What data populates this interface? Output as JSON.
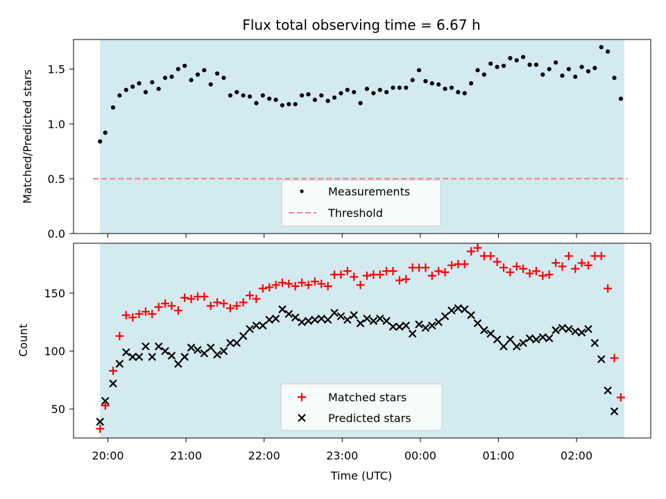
{
  "chart_data": [
    {
      "type": "scatter",
      "title": "Flux total observing time = 6.67 h",
      "xlabel": "",
      "ylabel": "Matched/Predicted stars",
      "ylim": [
        0,
        1.77
      ],
      "yticks": [
        "0.0",
        "0.5",
        "1.0",
        "1.5"
      ],
      "grid": false,
      "legend_position": "lower-center",
      "observing_window_color": "#d3eaf0",
      "series": [
        {
          "name": "Measurements",
          "marker": "dot",
          "color": "#000000",
          "x": [
            "19:54",
            "19:58",
            "20:04",
            "20:09",
            "20:14",
            "20:19",
            "20:24",
            "20:29",
            "20:34",
            "20:39",
            "20:44",
            "20:49",
            "20:54",
            "20:59",
            "21:04",
            "21:09",
            "21:14",
            "21:19",
            "21:24",
            "21:29",
            "21:34",
            "21:39",
            "21:44",
            "21:49",
            "21:54",
            "21:59",
            "22:04",
            "22:09",
            "22:14",
            "22:19",
            "22:24",
            "22:29",
            "22:34",
            "22:39",
            "22:44",
            "22:49",
            "22:54",
            "22:59",
            "23:04",
            "23:09",
            "23:14",
            "23:19",
            "23:24",
            "23:29",
            "23:34",
            "23:39",
            "23:44",
            "23:49",
            "23:54",
            "23:59",
            "00:04",
            "00:09",
            "00:14",
            "00:19",
            "00:24",
            "00:29",
            "00:34",
            "00:39",
            "00:44",
            "00:49",
            "00:54",
            "00:59",
            "01:04",
            "01:09",
            "01:14",
            "01:19",
            "01:24",
            "01:29",
            "01:34",
            "01:39",
            "01:44",
            "01:49",
            "01:54",
            "01:59",
            "02:04",
            "02:09",
            "02:14",
            "02:19",
            "02:24",
            "02:29",
            "02:34"
          ],
          "y": [
            0.84,
            0.92,
            1.15,
            1.26,
            1.31,
            1.34,
            1.37,
            1.29,
            1.38,
            1.32,
            1.42,
            1.43,
            1.5,
            1.53,
            1.4,
            1.45,
            1.49,
            1.36,
            1.46,
            1.42,
            1.26,
            1.29,
            1.26,
            1.25,
            1.19,
            1.26,
            1.23,
            1.22,
            1.17,
            1.18,
            1.18,
            1.26,
            1.27,
            1.22,
            1.26,
            1.21,
            1.24,
            1.28,
            1.31,
            1.29,
            1.19,
            1.32,
            1.28,
            1.31,
            1.29,
            1.33,
            1.33,
            1.33,
            1.4,
            1.49,
            1.39,
            1.37,
            1.36,
            1.32,
            1.33,
            1.29,
            1.28,
            1.37,
            1.49,
            1.45,
            1.55,
            1.52,
            1.53,
            1.6,
            1.58,
            1.61,
            1.54,
            1.54,
            1.45,
            1.5,
            1.56,
            1.44,
            1.5,
            1.43,
            1.52,
            1.48,
            1.51,
            1.7,
            1.66,
            1.42,
            1.23
          ]
        },
        {
          "name": "Threshold",
          "marker": "dashed-line",
          "color": "#f08080",
          "x": [
            "19:54",
            "02:34"
          ],
          "y": [
            0.5,
            0.5
          ]
        }
      ]
    },
    {
      "type": "scatter",
      "title": "",
      "xlabel": "Time (UTC)",
      "ylabel": "Count",
      "ylim": [
        25,
        193
      ],
      "yticks": [
        "50",
        "100",
        "150"
      ],
      "xticks": [
        "20:00",
        "21:00",
        "22:00",
        "23:00",
        "00:00",
        "01:00",
        "02:00"
      ],
      "grid": false,
      "legend_position": "lower-center",
      "observing_window_color": "#d3eaf0",
      "series": [
        {
          "name": "Matched stars",
          "marker": "plus",
          "color": "#ff0000",
          "x": [
            "19:54",
            "19:58",
            "20:04",
            "20:09",
            "20:14",
            "20:19",
            "20:24",
            "20:29",
            "20:34",
            "20:39",
            "20:44",
            "20:49",
            "20:54",
            "20:59",
            "21:04",
            "21:09",
            "21:14",
            "21:19",
            "21:24",
            "21:29",
            "21:34",
            "21:39",
            "21:44",
            "21:49",
            "21:54",
            "21:59",
            "22:04",
            "22:09",
            "22:14",
            "22:19",
            "22:24",
            "22:29",
            "22:34",
            "22:39",
            "22:44",
            "22:49",
            "22:54",
            "22:59",
            "23:04",
            "23:09",
            "23:14",
            "23:19",
            "23:24",
            "23:29",
            "23:34",
            "23:39",
            "23:44",
            "23:49",
            "23:54",
            "23:59",
            "00:04",
            "00:09",
            "00:14",
            "00:19",
            "00:24",
            "00:29",
            "00:34",
            "00:39",
            "00:44",
            "00:49",
            "00:54",
            "00:59",
            "01:04",
            "01:09",
            "01:14",
            "01:19",
            "01:24",
            "01:29",
            "01:34",
            "01:39",
            "01:44",
            "01:49",
            "01:54",
            "01:59",
            "02:04",
            "02:09",
            "02:14",
            "02:19",
            "02:24",
            "02:29",
            "02:34"
          ],
          "y": [
            33,
            53,
            83,
            113,
            131,
            129,
            132,
            134,
            132,
            138,
            141,
            139,
            135,
            146,
            145,
            147,
            147,
            139,
            142,
            141,
            137,
            139,
            142,
            148,
            145,
            154,
            155,
            157,
            159,
            158,
            156,
            159,
            157,
            160,
            158,
            156,
            166,
            166,
            169,
            164,
            157,
            165,
            166,
            166,
            169,
            169,
            161,
            162,
            172,
            172,
            172,
            165,
            169,
            168,
            174,
            175,
            175,
            186,
            189,
            182,
            182,
            177,
            172,
            168,
            173,
            171,
            167,
            169,
            165,
            166,
            176,
            173,
            182,
            171,
            176,
            174,
            182,
            182,
            154,
            94,
            60
          ]
        },
        {
          "name": "Predicted stars",
          "marker": "x",
          "color": "#000000",
          "x": [
            "19:54",
            "19:58",
            "20:04",
            "20:09",
            "20:14",
            "20:19",
            "20:24",
            "20:29",
            "20:34",
            "20:39",
            "20:44",
            "20:49",
            "20:54",
            "20:59",
            "21:04",
            "21:09",
            "21:14",
            "21:19",
            "21:24",
            "21:29",
            "21:34",
            "21:39",
            "21:44",
            "21:49",
            "21:54",
            "21:59",
            "22:04",
            "22:09",
            "22:14",
            "22:19",
            "22:24",
            "22:29",
            "22:34",
            "22:39",
            "22:44",
            "22:49",
            "22:54",
            "22:59",
            "23:04",
            "23:09",
            "23:14",
            "23:19",
            "23:24",
            "23:29",
            "23:34",
            "23:39",
            "23:44",
            "23:49",
            "23:54",
            "23:59",
            "00:04",
            "00:09",
            "00:14",
            "00:19",
            "00:24",
            "00:29",
            "00:34",
            "00:39",
            "00:44",
            "00:49",
            "00:54",
            "00:59",
            "01:04",
            "01:09",
            "01:14",
            "01:19",
            "01:24",
            "01:29",
            "01:34",
            "01:39",
            "01:44",
            "01:49",
            "01:54",
            "01:59",
            "02:04",
            "02:09",
            "02:14",
            "02:19",
            "02:24",
            "02:29",
            "02:34"
          ],
          "y": [
            39,
            57,
            72,
            89,
            99,
            95,
            95,
            104,
            95,
            104,
            100,
            96,
            89,
            95,
            103,
            101,
            98,
            103,
            97,
            100,
            107,
            107,
            113,
            119,
            122,
            122,
            127,
            128,
            136,
            132,
            129,
            125,
            126,
            127,
            128,
            127,
            133,
            130,
            127,
            131,
            124,
            128,
            126,
            128,
            126,
            121,
            121,
            122,
            115,
            123,
            120,
            122,
            125,
            130,
            135,
            137,
            136,
            131,
            124,
            118,
            115,
            110,
            104,
            110,
            104,
            107,
            111,
            110,
            112,
            111,
            118,
            120,
            119,
            117,
            116,
            119,
            107,
            93,
            66,
            48,
            null
          ]
        }
      ]
    }
  ]
}
